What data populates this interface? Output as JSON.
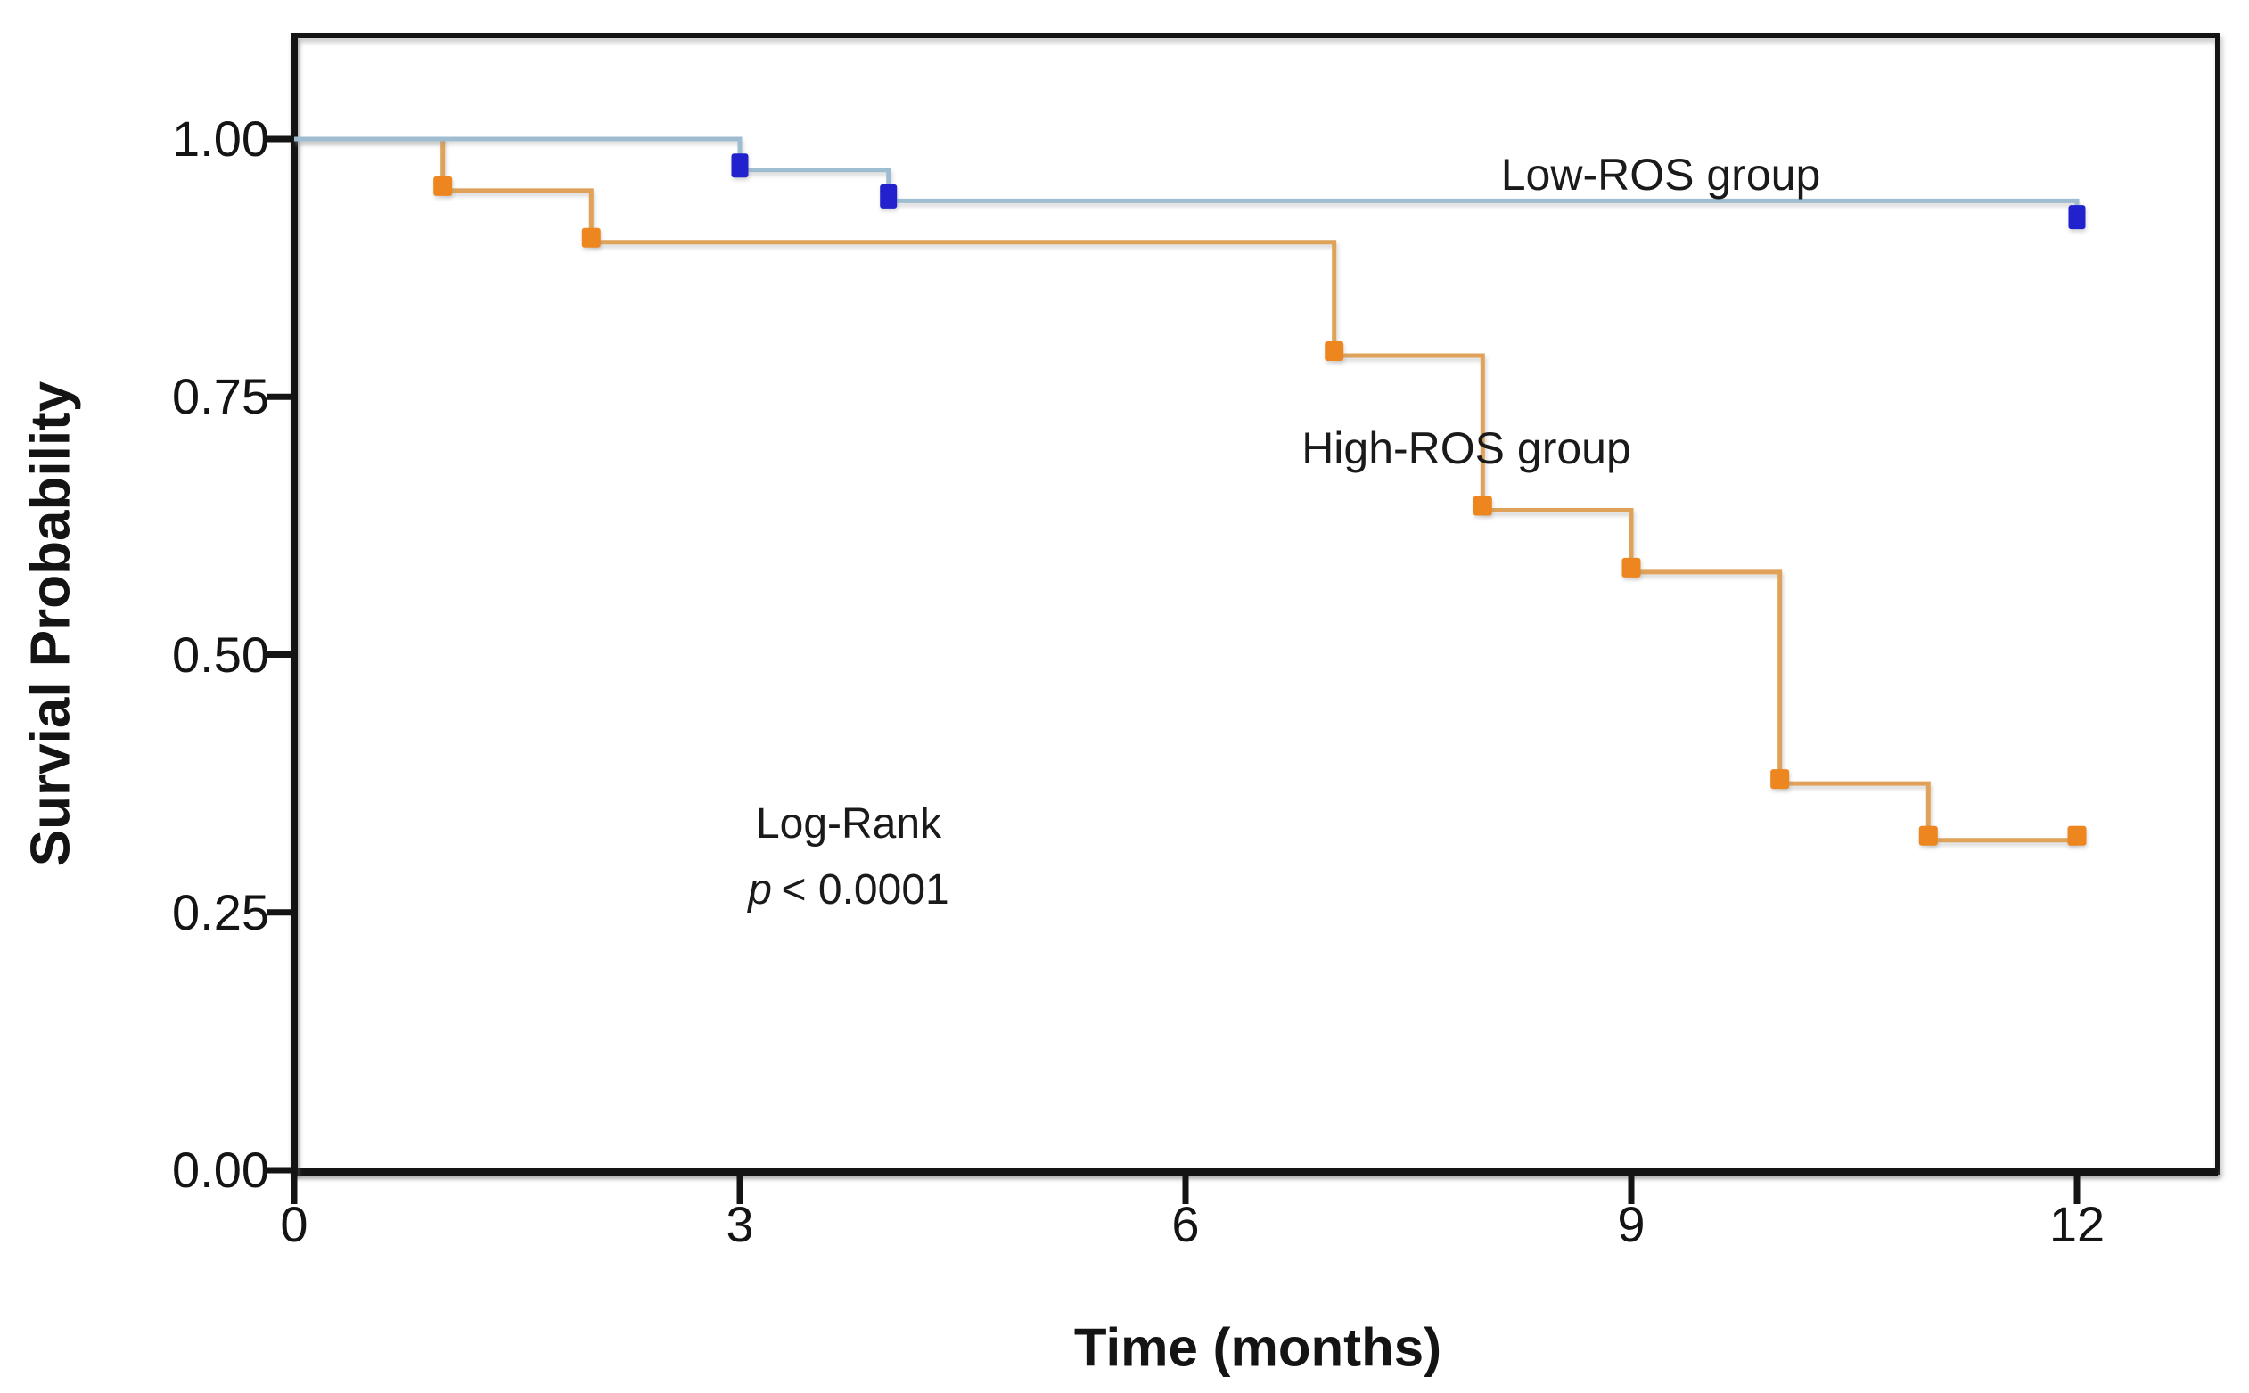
{
  "figure": {
    "background_color": "#ffffff",
    "axis_color": "#141414"
  },
  "chart_data": {
    "type": "line",
    "subtype": "kaplan-meier-survival-steps",
    "title": "",
    "xlabel": "Time (months)",
    "ylabel": "Survial Probability",
    "xlim": [
      0,
      12.95
    ],
    "ylim": [
      0,
      1.1
    ],
    "grid": false,
    "legend_position": "labels-on-plot",
    "x_ticks": [
      0,
      3,
      6,
      9,
      12
    ],
    "x_tick_labels": [
      "0",
      "3",
      "6",
      "9",
      "12"
    ],
    "y_ticks": [
      0,
      0.25,
      0.5,
      0.75,
      1.0
    ],
    "y_tick_labels": [
      "0.00",
      "0.25",
      "0.50",
      "0.75",
      "1.00"
    ],
    "annotation": {
      "line1": "Log-Rank",
      "p_symbol": "p",
      "p_rest": "< 0.0001"
    },
    "series": [
      {
        "name": "High-ROS group",
        "label_text": "High-ROS group",
        "line_color": "#dfa258",
        "marker_color": "#ee8620",
        "steps": [
          [
            0,
            1.0
          ],
          [
            1,
            1.0
          ],
          [
            1,
            0.95
          ],
          [
            2,
            0.95
          ],
          [
            2,
            0.9
          ],
          [
            7,
            0.9
          ],
          [
            7,
            0.79
          ],
          [
            8,
            0.79
          ],
          [
            8,
            0.64
          ],
          [
            9,
            0.64
          ],
          [
            9,
            0.58
          ],
          [
            10,
            0.58
          ],
          [
            10,
            0.375
          ],
          [
            11,
            0.375
          ],
          [
            11,
            0.32
          ],
          [
            12,
            0.32
          ]
        ],
        "markers": [
          [
            1,
            0.95
          ],
          [
            2,
            0.9
          ],
          [
            7,
            0.79
          ],
          [
            8,
            0.64
          ],
          [
            9,
            0.58
          ],
          [
            10,
            0.375
          ],
          [
            11,
            0.32
          ],
          [
            12,
            0.32
          ]
        ]
      },
      {
        "name": "Low-ROS group",
        "label_text": "Low-ROS group",
        "line_color": "#9fbdd1",
        "marker_color": "#2121ce",
        "steps": [
          [
            0,
            1.0
          ],
          [
            3,
            1.0
          ],
          [
            3,
            0.97
          ],
          [
            4,
            0.97
          ],
          [
            4,
            0.94
          ],
          [
            12,
            0.94
          ],
          [
            12,
            0.925
          ]
        ],
        "markers": [
          [
            3,
            0.97
          ],
          [
            4,
            0.94
          ],
          [
            12,
            0.92
          ]
        ]
      }
    ]
  }
}
